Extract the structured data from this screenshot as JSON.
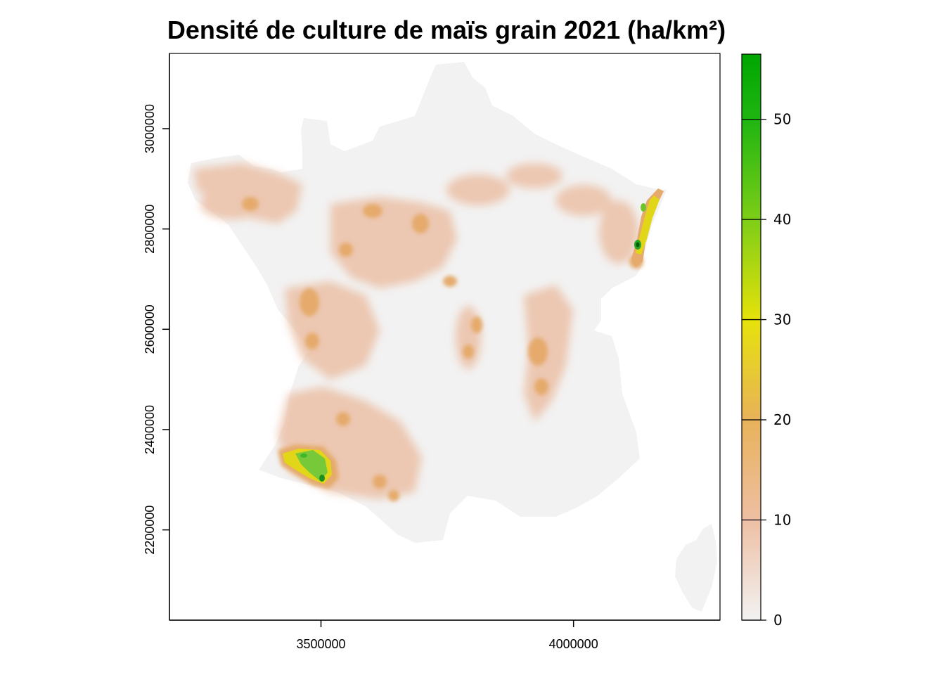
{
  "map": {
    "title": "Densité de culture de maïs grain 2021 (ha/km²)",
    "x_axis": {
      "ticks": [
        3500000,
        4000000
      ],
      "tick_labels": [
        "3500000",
        "4000000"
      ],
      "range": [
        3200000,
        4290000
      ]
    },
    "y_axis": {
      "ticks": [
        2200000,
        2400000,
        2600000,
        2800000,
        3000000
      ],
      "tick_labels": [
        "2200000",
        "2400000",
        "2600000",
        "2800000",
        "3000000"
      ],
      "range": [
        2020000,
        3150000
      ]
    },
    "legend": {
      "ticks": [
        0,
        10,
        20,
        30,
        40,
        50
      ],
      "tick_labels": [
        "0",
        "10",
        "20",
        "30",
        "40",
        "50"
      ],
      "range": [
        0,
        56.5
      ],
      "colors": [
        {
          "value": 0,
          "color": "#f2f2f2"
        },
        {
          "value": 10,
          "color": "#eebfa4"
        },
        {
          "value": 20,
          "color": "#e8b25a"
        },
        {
          "value": 30,
          "color": "#e6e20a"
        },
        {
          "value": 40,
          "color": "#7dcd17"
        },
        {
          "value": 50,
          "color": "#1fb511"
        },
        {
          "value": 56.5,
          "color": "#00a600"
        }
      ]
    },
    "colors": {
      "land_base": "#f2f2f2",
      "low_density": "#ebc0a6",
      "medium_density": "#e5aa6c",
      "high_density": "#e2d618",
      "very_high_density": "#3cb82a",
      "peak": "#007a00"
    }
  }
}
